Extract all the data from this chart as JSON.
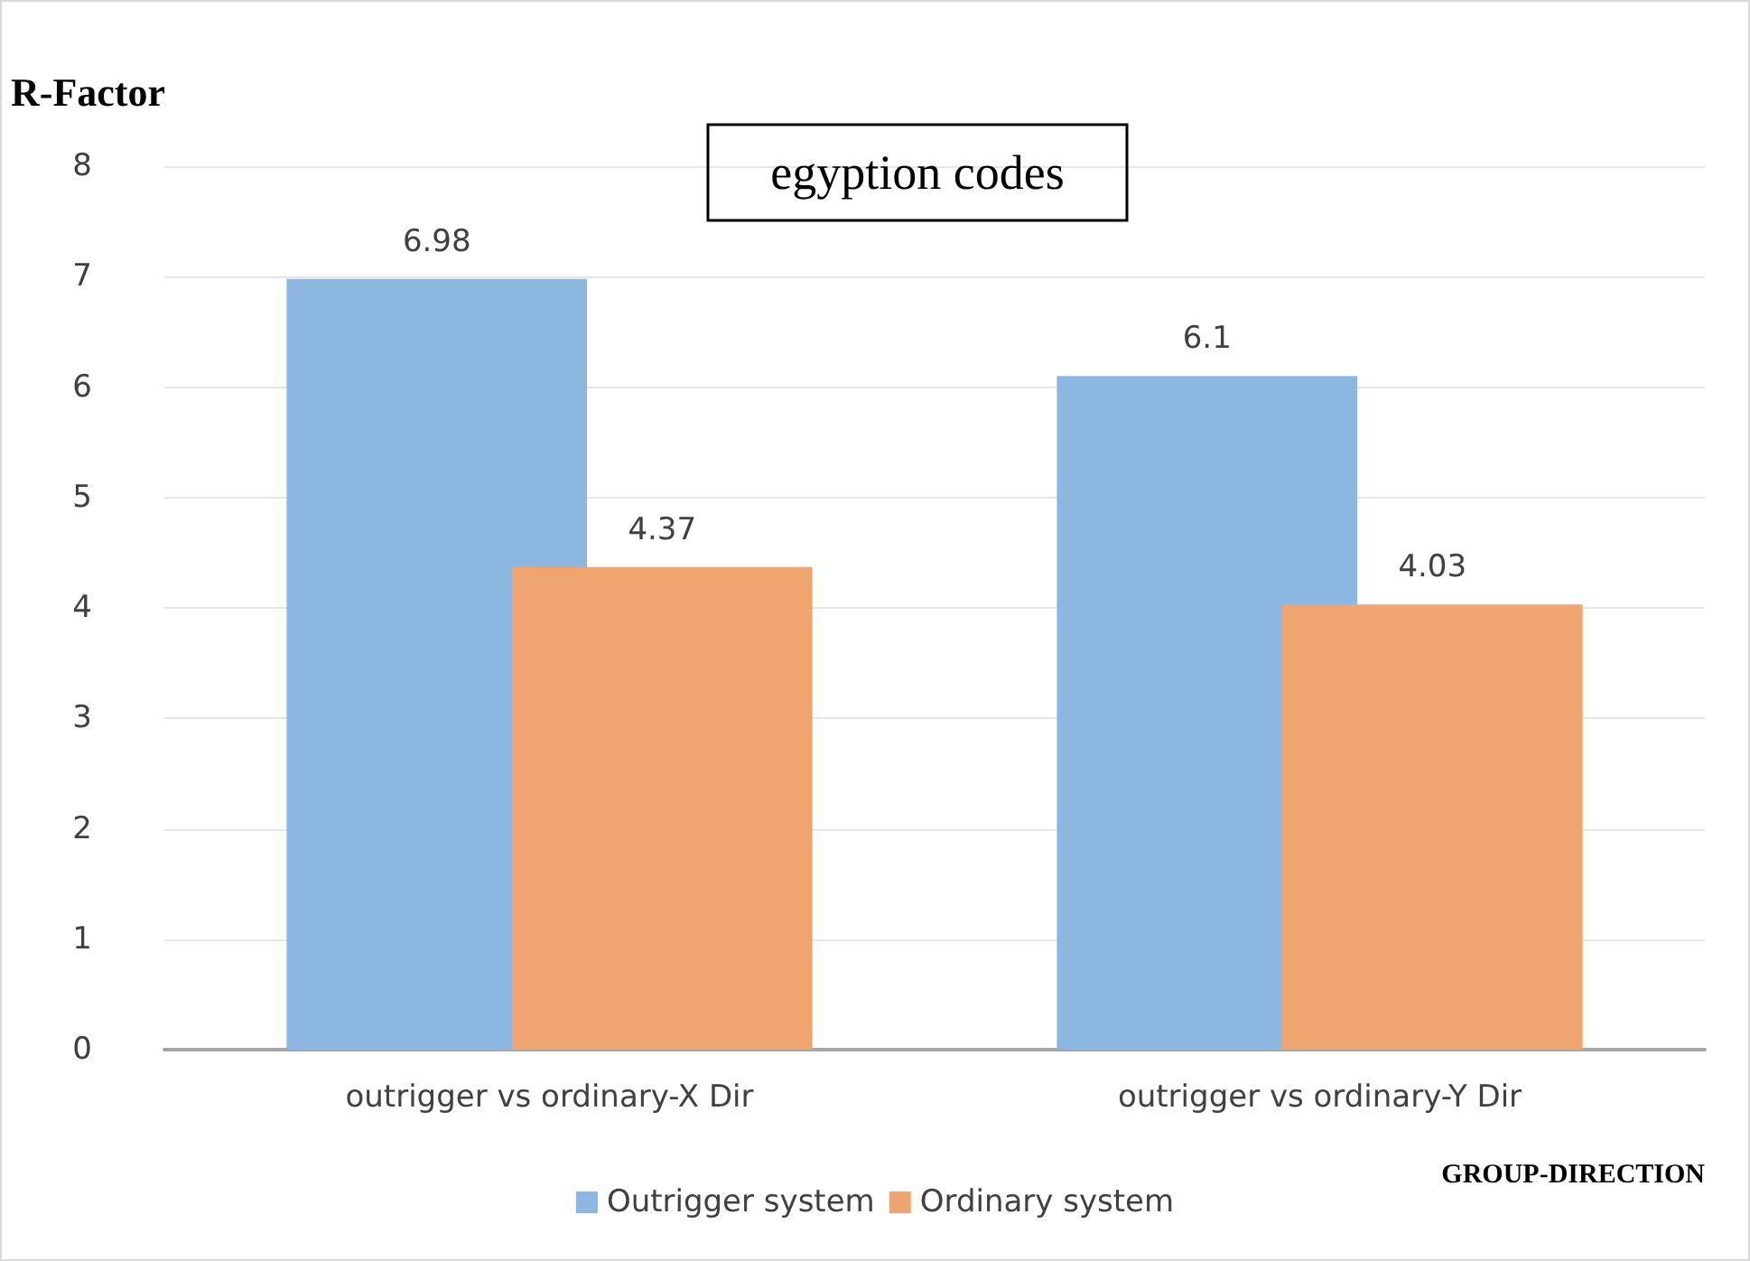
{
  "chart_data": {
    "type": "bar",
    "title": "egyption codes",
    "ylabel": "R-Factor",
    "xlabel": "GROUP-DIRECTION",
    "categories": [
      "outrigger vs ordinary-X Dir",
      "outrigger vs ordinary-Y Dir"
    ],
    "series": [
      {
        "name": "Outrigger system",
        "color": "#8cb7e1",
        "values": [
          6.98,
          6.1
        ]
      },
      {
        "name": "Ordinary system",
        "color": "#f0a470",
        "values": [
          4.37,
          4.03
        ]
      }
    ],
    "ylim": [
      0,
      8
    ],
    "yticks": [
      0,
      1,
      2,
      3,
      4,
      5,
      6,
      7,
      8
    ],
    "grid": "y",
    "legend": "bottom",
    "data_labels": true
  }
}
